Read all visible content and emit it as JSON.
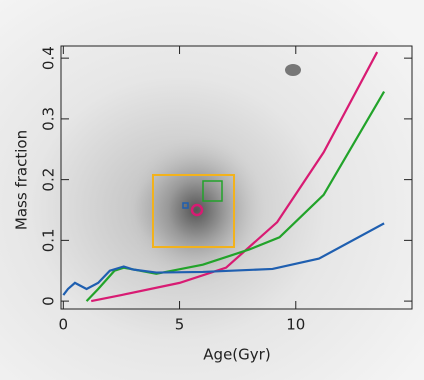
{
  "chart_data": {
    "type": "line",
    "x_label": "Age(Gyr)",
    "y_label": "Mass fraction",
    "xlim": [
      -0.1,
      15
    ],
    "ylim": [
      -0.013,
      0.42
    ],
    "xticks": [
      0,
      5,
      10
    ],
    "yticks": [
      0,
      0.1,
      0.2,
      0.3,
      0.4
    ],
    "series": [
      {
        "color": "#d81b73",
        "x": [
          1.2,
          2.5,
          5,
          7,
          9.2,
          11.2,
          13.5
        ],
        "values": [
          0,
          0.01,
          0.03,
          0.055,
          0.13,
          0.245,
          0.41
        ]
      },
      {
        "color": "#22a32a",
        "x": [
          1,
          1.5,
          2.2,
          2.6,
          4,
          6,
          8,
          9.3,
          11.2,
          13.8
        ],
        "values": [
          0,
          0.02,
          0.05,
          0.055,
          0.045,
          0.06,
          0.085,
          0.105,
          0.175,
          0.345
        ]
      },
      {
        "color": "#1f5fb0",
        "x": [
          0,
          0.2,
          0.5,
          1,
          1.5,
          2,
          2.6,
          3,
          4,
          6,
          9,
          11,
          13.8
        ],
        "values": [
          0.01,
          0.02,
          0.03,
          0.02,
          0.03,
          0.05,
          0.057,
          0.052,
          0.047,
          0.048,
          0.053,
          0.07,
          0.128
        ]
      }
    ]
  }
}
